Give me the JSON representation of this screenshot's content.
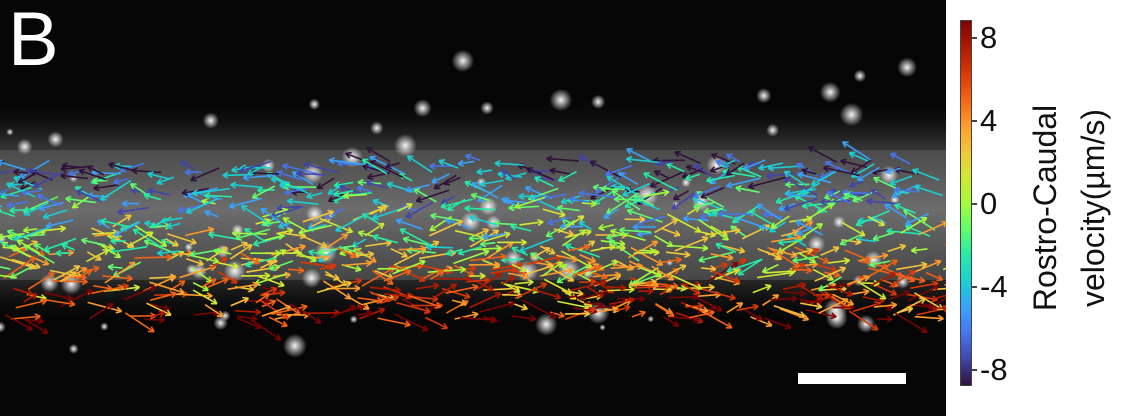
{
  "panel_label": "B",
  "colorbar": {
    "label_line1": "Rostro-Caudal",
    "label_line2": "velocity(µm/s)",
    "ticks": [
      "8",
      "4",
      "0",
      "-4",
      "-8"
    ],
    "min": -8,
    "max": 8,
    "colormap": [
      "#30123b",
      "#4145ab",
      "#4675ed",
      "#39a2fc",
      "#1bcfd4",
      "#24eca6",
      "#61fc6c",
      "#a4fc3b",
      "#d1e834",
      "#f3c63a",
      "#fe9b2d",
      "#f36315",
      "#d93806",
      "#b11901",
      "#7a0402"
    ]
  },
  "image": {
    "description_colors": {
      "background": "#050505",
      "tissue": "#8a8a8a"
    }
  },
  "scale_bar_color": "#ffffff"
}
